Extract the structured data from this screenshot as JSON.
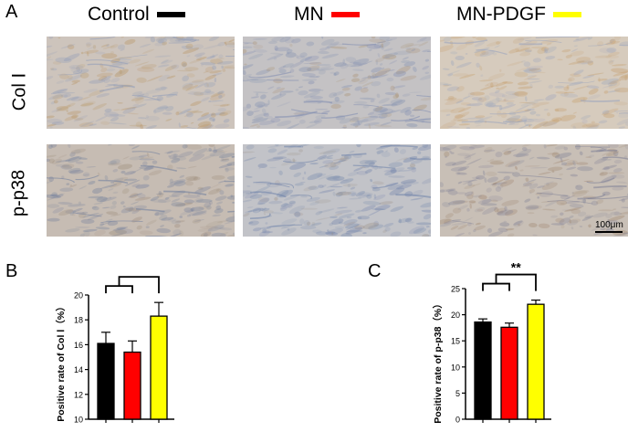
{
  "figure": {
    "panel_letters": [
      "A",
      "B",
      "C"
    ],
    "groups": [
      {
        "name": "Control",
        "color": "#000000"
      },
      {
        "name": "MN",
        "color": "#ff0000"
      },
      {
        "name": "MN-PDGF",
        "color": "#ffff00"
      }
    ],
    "row_labels": [
      "Col Ⅰ",
      "p-p38"
    ],
    "scale_bar_label": "100μm"
  },
  "chart_data": [
    {
      "type": "bar",
      "categories": [
        "Control",
        "MN",
        "MN-PDGF"
      ],
      "values": [
        16.1,
        15.4,
        18.3
      ],
      "errors": [
        0.9,
        0.9,
        1.1
      ],
      "colors": [
        "#000000",
        "#ff0000",
        "#ffff00"
      ],
      "ylabel": "Positive rate of Col Ⅰ（%）",
      "ylim": [
        10,
        20
      ],
      "yticks": [
        "10",
        "12",
        "14",
        "16",
        "18",
        "20"
      ],
      "significance": "**"
    },
    {
      "type": "bar",
      "categories": [
        "Control",
        "MN",
        "MN-PDGF"
      ],
      "values": [
        18.6,
        17.6,
        22.0
      ],
      "errors": [
        0.6,
        0.8,
        0.8
      ],
      "colors": [
        "#000000",
        "#ff0000",
        "#ffff00"
      ],
      "ylabel": "Positive rate of p-p38（%）",
      "ylim": [
        0,
        25
      ],
      "yticks": [
        "0",
        "5",
        "10",
        "15",
        "20",
        "25"
      ],
      "significance": "**"
    }
  ]
}
